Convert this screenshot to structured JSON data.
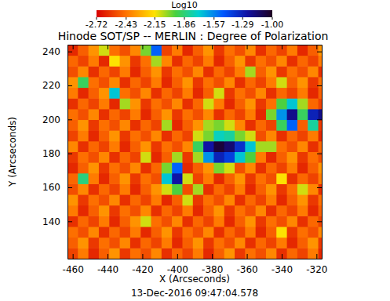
{
  "chart_data": {
    "type": "heatmap",
    "title": "Hinode SOT/SP -- MERLIN : Degree of Polarization",
    "subtitle": "13-Dec-2016 09:47:04.578",
    "x_label": "X (Arcseconds)",
    "y_label": "Y (Arcseconds)",
    "xlim": [
      -463,
      -317
    ],
    "ylim": [
      118,
      244
    ],
    "xticks": [
      -460,
      -440,
      -420,
      -400,
      -380,
      -360,
      -340,
      -320
    ],
    "yticks": [
      140,
      160,
      180,
      200,
      220,
      240
    ],
    "x": [
      -460,
      -454,
      -448,
      -442,
      -436,
      -430,
      -424,
      -418,
      -412,
      -406,
      -400,
      -394,
      -388,
      -382,
      -376,
      -370,
      -364,
      -358,
      -352,
      -346,
      -340,
      -334,
      -328,
      -322,
      -316
    ],
    "y": [
      121.2,
      127.5,
      133.8,
      140.1,
      146.4,
      152.7,
      159,
      165.3,
      171.6,
      177.9,
      184.2,
      190.5,
      196.8,
      203.1,
      209.4,
      215.7,
      222,
      228.3,
      234.6,
      240.9
    ],
    "z": [
      [
        -2.55,
        -2.41,
        -2.62,
        -2.48,
        -2.35,
        -2.58,
        -2.44,
        -2.52,
        -2.38,
        -2.6,
        -2.46,
        -2.55,
        -2.41,
        -2.62,
        -2.48,
        -2.35,
        -2.58,
        -2.44,
        -2.52,
        -2.38,
        -2.6,
        -2.46,
        -2.55,
        -2.41,
        -2.62
      ],
      [
        -2.48,
        -2.35,
        -2.58,
        -2.44,
        -2.52,
        -2.38,
        -2.6,
        -2.46,
        -2.55,
        -2.41,
        -2.62,
        -2.48,
        -2.35,
        -2.58,
        -2.44,
        -2.52,
        -2.38,
        -2.6,
        -2.46,
        -2.55,
        -2.41,
        -2.62,
        -2.48,
        -2.35,
        -2.58
      ],
      [
        -2.44,
        -2.52,
        -2.38,
        -2.6,
        -2.46,
        -2.55,
        -2.41,
        -2.62,
        -2.48,
        -2.35,
        -2.58,
        -2.44,
        -2.52,
        -2.38,
        -2.6,
        -2.46,
        -2.55,
        -2.41,
        -2.62,
        -2.48,
        -2.15,
        -2.58,
        -2.44,
        -2.52,
        -2.38
      ],
      [
        -2.6,
        -2.46,
        -2.55,
        -2.41,
        -2.62,
        -2.48,
        -2.35,
        -2.1,
        -2.44,
        -2.52,
        -2.38,
        -2.6,
        -2.46,
        -2.55,
        -2.41,
        -2.62,
        -2.48,
        -2.35,
        -2.58,
        -2.44,
        -2.52,
        -2.38,
        -2.6,
        -2.46,
        -2.55
      ],
      [
        -2.41,
        -2.62,
        -2.48,
        -2.35,
        -2.58,
        -2.44,
        -2.52,
        -2.38,
        -2.6,
        -2.46,
        -2.55,
        -2.41,
        -2.62,
        -2.48,
        -2.35,
        -2.58,
        -2.44,
        -2.52,
        -2.38,
        -2.6,
        -2.46,
        -2.55,
        -2.41,
        -2.62,
        -2.48
      ],
      [
        -2.35,
        -2.58,
        -2.44,
        -2.52,
        -2.38,
        -2.6,
        -2.46,
        -2.55,
        -2.41,
        -2.62,
        -2.48,
        -2.1,
        -2.58,
        -2.44,
        -2.52,
        -2.38,
        -2.6,
        -2.46,
        -2.55,
        -2.41,
        -2.62,
        -2.48,
        -2.35,
        -2.58,
        -2.44
      ],
      [
        -2.52,
        -2.38,
        -2.6,
        -2.46,
        -2.55,
        -2.41,
        -2.62,
        -2.48,
        -2.35,
        -2.1,
        -1.95,
        -2.52,
        -2.05,
        -2.6,
        -2.46,
        -2.55,
        -2.41,
        -2.62,
        -2.48,
        -2.35,
        -2.58,
        -2.44,
        -2.1,
        -2.38,
        -2.6
      ],
      [
        -2.46,
        -1.85,
        -2.41,
        -2.62,
        -2.48,
        -2.35,
        -2.58,
        -2.44,
        -2.52,
        -1.7,
        -1.25,
        -2.1,
        -2.55,
        -2.41,
        -2.62,
        -2.48,
        -2.35,
        -2.58,
        -2.44,
        -2.52,
        -2.15,
        -2.6,
        -2.46,
        -2.55,
        -2.41
      ],
      [
        -2.62,
        -2.48,
        -2.35,
        -2.58,
        -2.44,
        -2.52,
        -2.38,
        -2.6,
        -2.46,
        -2.0,
        -1.5,
        -2.62,
        -2.48,
        -2.35,
        -2.0,
        -2.1,
        -2.52,
        -2.38,
        -2.6,
        -2.46,
        -2.55,
        -2.41,
        -2.62,
        -2.48,
        -2.35
      ],
      [
        -2.58,
        -2.44,
        -2.52,
        -2.38,
        -2.6,
        -2.46,
        -2.55,
        -2.1,
        -2.62,
        -2.48,
        -2.05,
        -2.58,
        -2.05,
        -1.6,
        -1.3,
        -1.4,
        -1.7,
        -1.95,
        -2.41,
        -2.62,
        -2.48,
        -2.35,
        -2.58,
        -2.44,
        -2.52
      ],
      [
        -2.38,
        -2.6,
        -2.46,
        -2.55,
        -2.41,
        -2.62,
        -2.48,
        -2.35,
        -2.58,
        -2.44,
        -2.52,
        -2.38,
        -1.9,
        -1.25,
        -1.05,
        -1.15,
        -1.35,
        -1.7,
        -2.05,
        -2.05,
        -2.44,
        -2.52,
        -2.38,
        -2.6,
        -2.46
      ],
      [
        -2.55,
        -2.41,
        -2.62,
        -2.48,
        -2.35,
        -2.58,
        -2.44,
        -2.52,
        -2.38,
        -2.6,
        -2.46,
        -2.55,
        -2.1,
        -2.0,
        -1.75,
        -1.8,
        -2.0,
        -2.1,
        -2.52,
        -2.38,
        -2.6,
        -2.46,
        -2.55,
        -2.41,
        -2.62
      ],
      [
        -2.48,
        -2.35,
        -2.58,
        -2.44,
        -2.52,
        -2.38,
        -2.6,
        -2.46,
        -2.55,
        -2.05,
        -2.62,
        -2.48,
        -2.35,
        -2.05,
        -2.0,
        -2.1,
        -2.38,
        -2.6,
        -2.46,
        -2.55,
        -1.9,
        -1.5,
        -2.48,
        -1.8,
        -2.58
      ],
      [
        -2.44,
        -2.52,
        -2.38,
        -2.6,
        -2.46,
        -2.55,
        -2.41,
        -2.62,
        -2.48,
        -2.35,
        -2.58,
        -2.44,
        -2.52,
        -2.38,
        -2.6,
        -2.46,
        -2.55,
        -2.41,
        -2.62,
        -2.0,
        -1.6,
        -1.2,
        -1.9,
        -1.3,
        -1.2
      ],
      [
        -2.6,
        -2.46,
        -2.55,
        -2.41,
        -2.62,
        -2.05,
        -2.35,
        -2.58,
        -2.44,
        -2.52,
        -2.38,
        -2.6,
        -2.46,
        -2.1,
        -2.41,
        -2.62,
        -2.48,
        -2.35,
        -2.58,
        -2.44,
        -1.95,
        -1.7,
        -2.05,
        -2.46,
        -2.55
      ],
      [
        -2.41,
        -2.62,
        -2.48,
        -2.35,
        -1.7,
        -2.44,
        -2.52,
        -2.38,
        -2.6,
        -2.46,
        -2.55,
        -2.41,
        -2.62,
        -2.48,
        -2.1,
        -2.58,
        -2.44,
        -2.52,
        -2.38,
        -2.6,
        -2.46,
        -2.55,
        -2.41,
        -2.62,
        -2.48
      ],
      [
        -2.35,
        -1.9,
        -2.44,
        -2.52,
        -2.38,
        -2.6,
        -2.46,
        -2.55,
        -2.41,
        -2.62,
        -2.48,
        -2.35,
        -2.58,
        -2.44,
        -2.52,
        -2.38,
        -2.6,
        -2.46,
        -2.55,
        -2.41,
        -2.1,
        -2.48,
        -2.35,
        -2.58,
        -2.44
      ],
      [
        -2.52,
        -2.38,
        -2.6,
        -2.46,
        -2.55,
        -2.41,
        -2.62,
        -2.48,
        -2.35,
        -2.58,
        -2.44,
        -2.52,
        -2.38,
        -2.6,
        -2.46,
        -2.55,
        -2.41,
        -2.05,
        -2.48,
        -2.35,
        -2.58,
        -2.44,
        -2.52,
        -2.38,
        -2.6
      ],
      [
        -2.46,
        -2.55,
        -2.41,
        -2.62,
        -2.15,
        -2.35,
        -2.58,
        -2.44,
        -2.05,
        -2.38,
        -2.6,
        -2.46,
        -2.55,
        -2.41,
        -2.62,
        -2.48,
        -2.35,
        -2.58,
        -2.44,
        -2.52,
        -2.38,
        -2.6,
        -2.46,
        -2.55,
        -2.41
      ],
      [
        -2.62,
        -2.48,
        -2.35,
        -2.1,
        -2.44,
        -2.52,
        -2.38,
        -2.0,
        -1.5,
        -2.55,
        -2.41,
        -2.62,
        -2.48,
        -2.35,
        -2.58,
        -2.44,
        -2.52,
        -2.38,
        -2.6,
        -2.46,
        -2.55,
        -2.41,
        -2.62,
        -2.48,
        -2.35
      ]
    ],
    "colorbar": {
      "label": "Log10",
      "range": [
        -2.72,
        -1.0
      ],
      "ticks": [
        -2.72,
        -2.43,
        -2.15,
        -1.86,
        -1.57,
        -1.29,
        {
          "value": -1.0,
          "label": "-1.00"
        }
      ]
    }
  }
}
